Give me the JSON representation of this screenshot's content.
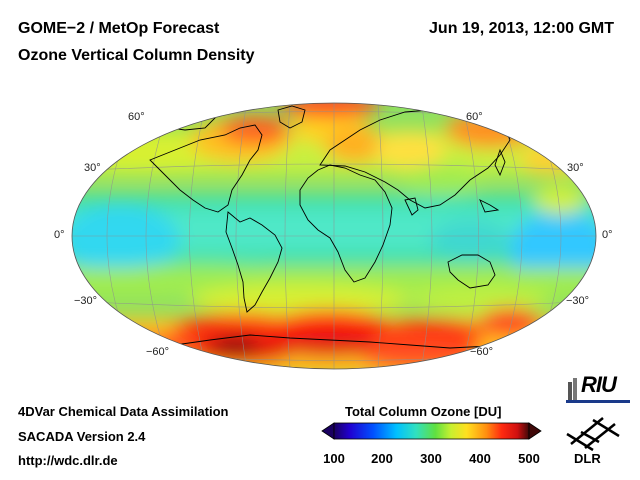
{
  "header": {
    "title": "GOME−2 / MetOp Forecast",
    "subtitle": "Ozone Vertical Column Density",
    "datetime": "Jun 19, 2013, 12:00 GMT"
  },
  "map": {
    "projection": "Hammer-Aitoff",
    "lat_labels_left": [
      "60°",
      "30°",
      "0°",
      "−30°",
      "−60°"
    ],
    "lat_labels_right": [
      "60°",
      "30°",
      "0°",
      "−30°",
      "−60°"
    ]
  },
  "footer": {
    "line1": "4DVar Chemical Data Assimilation",
    "line2": "SACADA Version 2.4",
    "line3": "http://wdc.dlr.de"
  },
  "colorbar": {
    "title": "Total Column Ozone [DU]",
    "ticks": [
      "100",
      "200",
      "300",
      "400",
      "500"
    ],
    "colors": [
      "#1a0060",
      "#2000d0",
      "#0050ff",
      "#00c0ff",
      "#30e0c0",
      "#60e040",
      "#c8f030",
      "#ffe020",
      "#ff9010",
      "#ff2a10",
      "#d01010",
      "#400808"
    ]
  },
  "logos": {
    "riu": "RIU",
    "dlr": "DLR"
  }
}
